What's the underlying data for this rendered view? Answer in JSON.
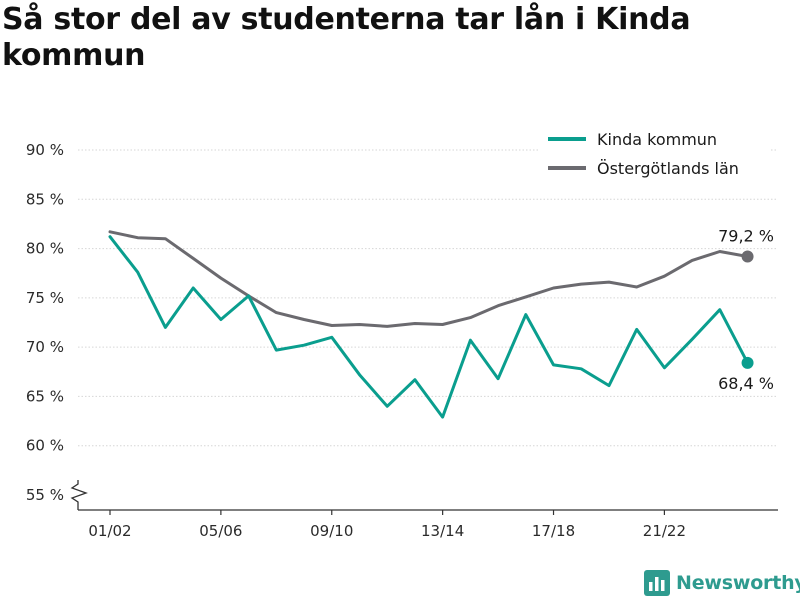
{
  "title": "Så stor del av studenterna tar lån i Kinda kommun",
  "brand": {
    "name": "Newsworthy",
    "icon": "bar-chart-logo-icon",
    "color": "#2e9b8f"
  },
  "chart_data": {
    "type": "line",
    "title": "Så stor del av studenterna tar lån i Kinda kommun",
    "xlabel": "",
    "ylabel": "",
    "ylim": [
      55,
      90
    ],
    "y_axis_break": true,
    "y_ticks": [
      "55 %",
      "60 %",
      "65 %",
      "70 %",
      "75 %",
      "80 %",
      "85 %",
      "90 %"
    ],
    "grid": "horizontal",
    "legend_position": "top-right",
    "x_tick_labels": [
      "01/02",
      "05/06",
      "09/10",
      "13/14",
      "17/18",
      "21/22"
    ],
    "x_tick_index": [
      0,
      4,
      8,
      12,
      16,
      20
    ],
    "n_points": 24,
    "series": [
      {
        "name": "Kinda kommun",
        "color": "#0a9e8e",
        "values": [
          81.2,
          77.6,
          72.0,
          76.0,
          72.8,
          75.2,
          69.7,
          70.2,
          71.0,
          67.2,
          64.0,
          66.7,
          62.9,
          70.7,
          66.8,
          73.3,
          68.2,
          67.8,
          66.1,
          71.8,
          67.9,
          70.8,
          73.8,
          68.4
        ],
        "end_label": "68,4 %"
      },
      {
        "name": "Östergötlands län",
        "color": "#6b6a6f",
        "values": [
          81.7,
          81.1,
          81.0,
          79.0,
          77.0,
          75.2,
          73.5,
          72.8,
          72.2,
          72.3,
          72.1,
          72.4,
          72.3,
          73.0,
          74.2,
          75.1,
          76.0,
          76.4,
          76.6,
          76.1,
          77.2,
          78.8,
          79.7,
          79.2
        ],
        "end_label": "79,2 %"
      }
    ]
  }
}
